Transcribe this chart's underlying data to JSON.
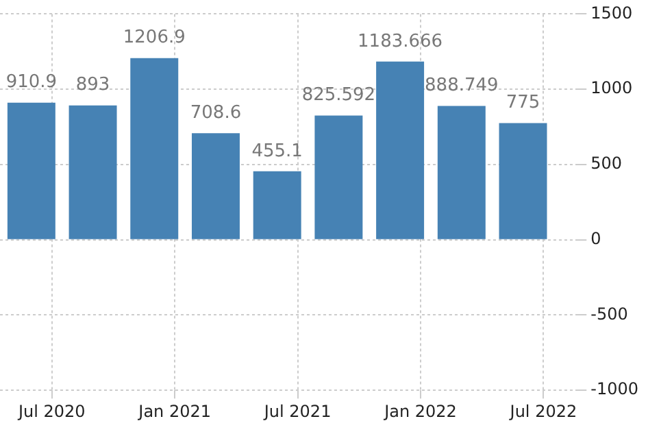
{
  "chart_data": {
    "type": "bar",
    "x": [
      "2020-06",
      "2020-09",
      "2020-12",
      "2021-03",
      "2021-06",
      "2021-09",
      "2021-12",
      "2022-03",
      "2022-06"
    ],
    "values": [
      910.9,
      893,
      1206.9,
      708.6,
      455.1,
      825.592,
      1183.666,
      888.749,
      775
    ],
    "color": "#4682b4",
    "data_labels": true,
    "xlim": [
      "2020-04-15",
      "2022-08-22"
    ],
    "xticks": [
      {
        "value": "2020-07",
        "label": "Jul 2020"
      },
      {
        "value": "2021-01",
        "label": "Jan 2021"
      },
      {
        "value": "2021-07",
        "label": "Jul 2021"
      },
      {
        "value": "2022-01",
        "label": "Jan 2022"
      },
      {
        "value": "2022-07",
        "label": "Jul 2022"
      }
    ],
    "ylim": [
      -1000,
      1500
    ],
    "yticks": [
      -1000,
      -500,
      0,
      500,
      1000,
      1500
    ],
    "grid": true
  }
}
